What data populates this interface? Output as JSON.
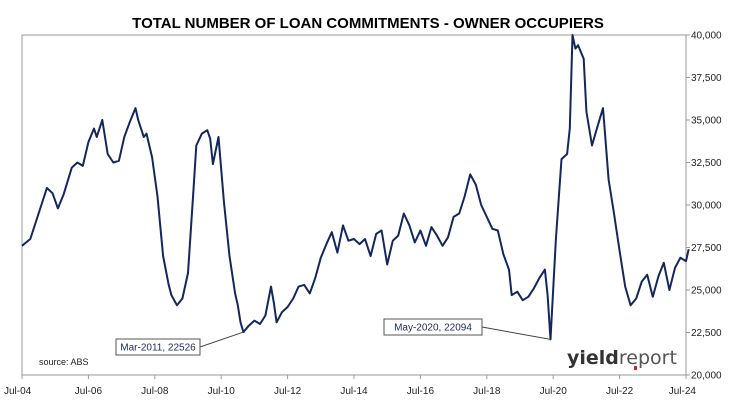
{
  "chart_data": {
    "type": "line",
    "title": "TOTAL NUMBER OF LOAN COMMITMENTS - OWNER OCCUPIERS",
    "xlabel": "",
    "ylabel": "",
    "ylim": [
      20000,
      40000
    ],
    "y_ticks": [
      "20,000",
      "22,500",
      "25,000",
      "27,500",
      "30,000",
      "32,500",
      "35,000",
      "37,500",
      "40,000"
    ],
    "y_tick_values": [
      20000,
      22500,
      25000,
      27500,
      30000,
      32500,
      35000,
      37500,
      40000
    ],
    "x_ticks": [
      "Jul-04",
      "Jul-06",
      "Jul-08",
      "Jul-10",
      "Jul-12",
      "Jul-14",
      "Jul-16",
      "Jul-18",
      "Jul-20",
      "Jul-22",
      "Jul-24"
    ],
    "x_tick_years": [
      2004.5,
      2006.5,
      2008.5,
      2010.5,
      2012.5,
      2014.5,
      2016.5,
      2018.5,
      2020.5,
      2022.5,
      2024.5
    ],
    "grid": false,
    "line_color": "#13275e",
    "series": [
      {
        "points": [
          [
            2004.5,
            27600
          ],
          [
            2004.75,
            28000
          ],
          [
            2005.0,
            29500
          ],
          [
            2005.25,
            31000
          ],
          [
            2005.42,
            30700
          ],
          [
            2005.58,
            29800
          ],
          [
            2005.75,
            30600
          ],
          [
            2006.0,
            32200
          ],
          [
            2006.17,
            32500
          ],
          [
            2006.33,
            32300
          ],
          [
            2006.5,
            33700
          ],
          [
            2006.67,
            34500
          ],
          [
            2006.75,
            34000
          ],
          [
            2006.92,
            35000
          ],
          [
            2007.08,
            33000
          ],
          [
            2007.25,
            32500
          ],
          [
            2007.42,
            32600
          ],
          [
            2007.58,
            34000
          ],
          [
            2007.75,
            34900
          ],
          [
            2007.92,
            35700
          ],
          [
            2008.0,
            35000
          ],
          [
            2008.17,
            34000
          ],
          [
            2008.25,
            34200
          ],
          [
            2008.42,
            32800
          ],
          [
            2008.58,
            30500
          ],
          [
            2008.75,
            27000
          ],
          [
            2008.92,
            25300
          ],
          [
            2009.0,
            24700
          ],
          [
            2009.17,
            24100
          ],
          [
            2009.33,
            24500
          ],
          [
            2009.5,
            26000
          ],
          [
            2009.67,
            31000
          ],
          [
            2009.75,
            33500
          ],
          [
            2009.92,
            34200
          ],
          [
            2010.08,
            34400
          ],
          [
            2010.17,
            33900
          ],
          [
            2010.25,
            32400
          ],
          [
            2010.42,
            34000
          ],
          [
            2010.58,
            30200
          ],
          [
            2010.75,
            27000
          ],
          [
            2010.92,
            24800
          ],
          [
            2011.0,
            24100
          ],
          [
            2011.08,
            23100
          ],
          [
            2011.17,
            22526
          ],
          [
            2011.33,
            22900
          ],
          [
            2011.5,
            23200
          ],
          [
            2011.67,
            23000
          ],
          [
            2011.83,
            23500
          ],
          [
            2012.0,
            25200
          ],
          [
            2012.08,
            24300
          ],
          [
            2012.17,
            23100
          ],
          [
            2012.33,
            23700
          ],
          [
            2012.5,
            24000
          ],
          [
            2012.67,
            24500
          ],
          [
            2012.83,
            25200
          ],
          [
            2013.0,
            25300
          ],
          [
            2013.17,
            24800
          ],
          [
            2013.33,
            25700
          ],
          [
            2013.5,
            26900
          ],
          [
            2013.67,
            27700
          ],
          [
            2013.83,
            28400
          ],
          [
            2014.0,
            27200
          ],
          [
            2014.17,
            28800
          ],
          [
            2014.33,
            27900
          ],
          [
            2014.5,
            28000
          ],
          [
            2014.67,
            27700
          ],
          [
            2014.83,
            28000
          ],
          [
            2015.0,
            27000
          ],
          [
            2015.17,
            28300
          ],
          [
            2015.33,
            28500
          ],
          [
            2015.5,
            26500
          ],
          [
            2015.67,
            27900
          ],
          [
            2015.83,
            28200
          ],
          [
            2016.0,
            29500
          ],
          [
            2016.17,
            28800
          ],
          [
            2016.33,
            27800
          ],
          [
            2016.5,
            28500
          ],
          [
            2016.67,
            27600
          ],
          [
            2016.83,
            28700
          ],
          [
            2017.0,
            28200
          ],
          [
            2017.17,
            27600
          ],
          [
            2017.33,
            28100
          ],
          [
            2017.5,
            29300
          ],
          [
            2017.67,
            29500
          ],
          [
            2017.83,
            30500
          ],
          [
            2018.0,
            31800
          ],
          [
            2018.17,
            31200
          ],
          [
            2018.33,
            30000
          ],
          [
            2018.5,
            29300
          ],
          [
            2018.67,
            28600
          ],
          [
            2018.83,
            28500
          ],
          [
            2019.0,
            27100
          ],
          [
            2019.17,
            26200
          ],
          [
            2019.25,
            24700
          ],
          [
            2019.42,
            24900
          ],
          [
            2019.58,
            24400
          ],
          [
            2019.75,
            24600
          ],
          [
            2019.92,
            25100
          ],
          [
            2020.08,
            25700
          ],
          [
            2020.25,
            26200
          ],
          [
            2020.33,
            24700
          ],
          [
            2020.42,
            22094
          ],
          [
            2020.58,
            28000
          ],
          [
            2020.75,
            32700
          ],
          [
            2020.92,
            33000
          ],
          [
            2021.0,
            34500
          ],
          [
            2021.08,
            40000
          ],
          [
            2021.17,
            39200
          ],
          [
            2021.25,
            39400
          ],
          [
            2021.42,
            38600
          ],
          [
            2021.5,
            35500
          ],
          [
            2021.67,
            33500
          ],
          [
            2021.83,
            34600
          ],
          [
            2022.0,
            35700
          ],
          [
            2022.17,
            31500
          ],
          [
            2022.33,
            29500
          ],
          [
            2022.5,
            27300
          ],
          [
            2022.67,
            25200
          ],
          [
            2022.83,
            24100
          ],
          [
            2023.0,
            24500
          ],
          [
            2023.17,
            25500
          ],
          [
            2023.33,
            25900
          ],
          [
            2023.5,
            24600
          ],
          [
            2023.67,
            25800
          ],
          [
            2023.83,
            26600
          ],
          [
            2024.0,
            25000
          ],
          [
            2024.17,
            26300
          ],
          [
            2024.33,
            26900
          ],
          [
            2024.5,
            26700
          ],
          [
            2024.58,
            27400
          ]
        ]
      }
    ],
    "annotations": [
      {
        "text": "Mar-2011, 22526",
        "x": 2011.17,
        "y": 22526
      },
      {
        "text": "May-2020, 22094",
        "x": 2020.42,
        "y": 22094
      }
    ],
    "source": "source: ABS",
    "logo": "yieldreport"
  }
}
